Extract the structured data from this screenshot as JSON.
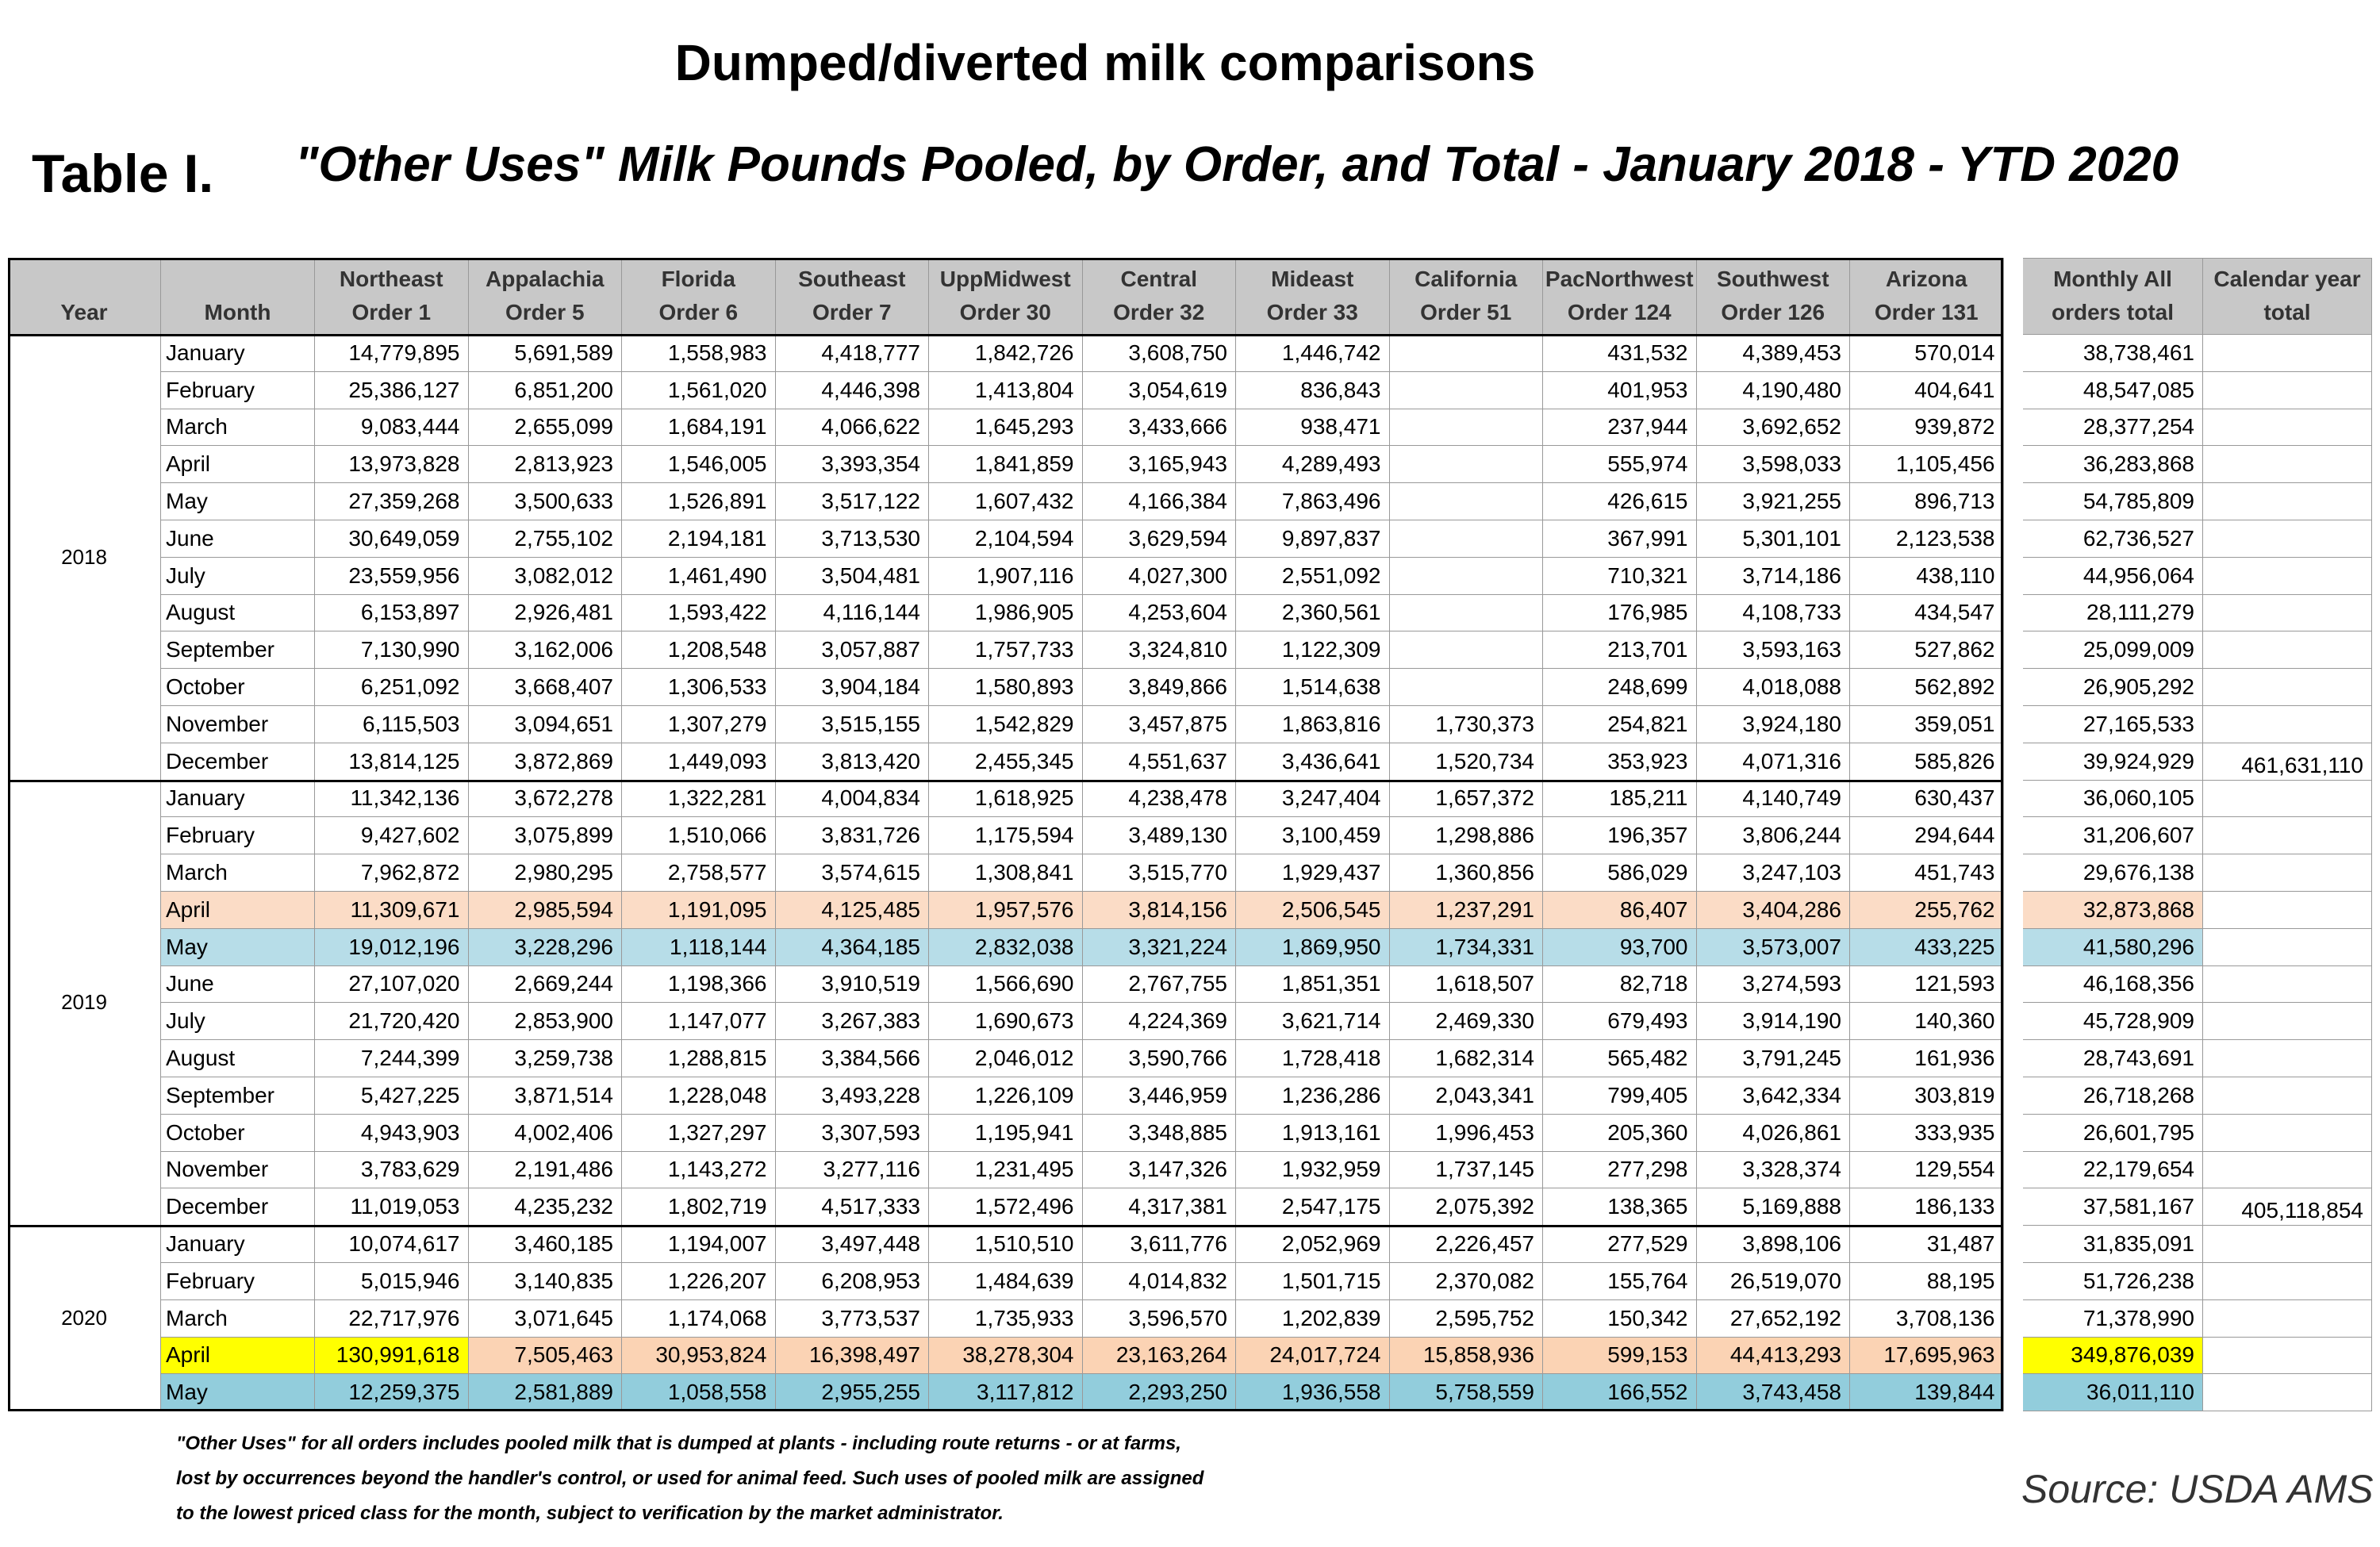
{
  "title": "Dumped/diverted milk comparisons",
  "table_label": "Table I.",
  "subtitle": "\"Other Uses\" Milk Pounds Pooled, by Order, and Total - January 2018 - YTD 2020",
  "table": {
    "header_fill": "#c8c8c8",
    "columns": [
      [
        "Year"
      ],
      [
        "Month"
      ],
      [
        "Northeast",
        "Order 1"
      ],
      [
        "Appalachia",
        "Order 5"
      ],
      [
        "Florida",
        "Order 6"
      ],
      [
        "Southeast",
        "Order 7"
      ],
      [
        "UppMidwest",
        "Order 30"
      ],
      [
        "Central",
        "Order 32"
      ],
      [
        "Mideast",
        "Order 33"
      ],
      [
        "California",
        "Order 51"
      ],
      [
        "PacNorthwest",
        "Order 124"
      ],
      [
        "Southwest",
        "Order 126"
      ],
      [
        "Arizona",
        "Order 131"
      ],
      [
        "Monthly All",
        "orders total"
      ],
      [
        "Calendar year",
        "total"
      ]
    ],
    "groups": [
      {
        "year": "2018",
        "rows": [
          {
            "month": "January",
            "values": [
              "14,779,895",
              "5,691,589",
              "1,558,983",
              "4,418,777",
              "1,842,726",
              "3,608,750",
              "1,446,742",
              null,
              "431,532",
              "4,389,453",
              "570,014"
            ],
            "monthly_total": "38,738,461"
          },
          {
            "month": "February",
            "values": [
              "25,386,127",
              "6,851,200",
              "1,561,020",
              "4,446,398",
              "1,413,804",
              "3,054,619",
              "836,843",
              null,
              "401,953",
              "4,190,480",
              "404,641"
            ],
            "monthly_total": "48,547,085"
          },
          {
            "month": "March",
            "values": [
              "9,083,444",
              "2,655,099",
              "1,684,191",
              "4,066,622",
              "1,645,293",
              "3,433,666",
              "938,471",
              null,
              "237,944",
              "3,692,652",
              "939,872"
            ],
            "monthly_total": "28,377,254"
          },
          {
            "month": "April",
            "values": [
              "13,973,828",
              "2,813,923",
              "1,546,005",
              "3,393,354",
              "1,841,859",
              "3,165,943",
              "4,289,493",
              null,
              "555,974",
              "3,598,033",
              "1,105,456"
            ],
            "monthly_total": "36,283,868"
          },
          {
            "month": "May",
            "values": [
              "27,359,268",
              "3,500,633",
              "1,526,891",
              "3,517,122",
              "1,607,432",
              "4,166,384",
              "7,863,496",
              null,
              "426,615",
              "3,921,255",
              "896,713"
            ],
            "monthly_total": "54,785,809"
          },
          {
            "month": "June",
            "values": [
              "30,649,059",
              "2,755,102",
              "2,194,181",
              "3,713,530",
              "2,104,594",
              "3,629,594",
              "9,897,837",
              null,
              "367,991",
              "5,301,101",
              "2,123,538"
            ],
            "monthly_total": "62,736,527"
          },
          {
            "month": "July",
            "values": [
              "23,559,956",
              "3,082,012",
              "1,461,490",
              "3,504,481",
              "1,907,116",
              "4,027,300",
              "2,551,092",
              null,
              "710,321",
              "3,714,186",
              "438,110"
            ],
            "monthly_total": "44,956,064"
          },
          {
            "month": "August",
            "values": [
              "6,153,897",
              "2,926,481",
              "1,593,422",
              "4,116,144",
              "1,986,905",
              "4,253,604",
              "2,360,561",
              null,
              "176,985",
              "4,108,733",
              "434,547"
            ],
            "monthly_total": "28,111,279"
          },
          {
            "month": "September",
            "values": [
              "7,130,990",
              "3,162,006",
              "1,208,548",
              "3,057,887",
              "1,757,733",
              "3,324,810",
              "1,122,309",
              null,
              "213,701",
              "3,593,163",
              "527,862"
            ],
            "monthly_total": "25,099,009"
          },
          {
            "month": "October",
            "values": [
              "6,251,092",
              "3,668,407",
              "1,306,533",
              "3,904,184",
              "1,580,893",
              "3,849,866",
              "1,514,638",
              null,
              "248,699",
              "4,018,088",
              "562,892"
            ],
            "monthly_total": "26,905,292"
          },
          {
            "month": "November",
            "values": [
              "6,115,503",
              "3,094,651",
              "1,307,279",
              "3,515,155",
              "1,542,829",
              "3,457,875",
              "1,863,816",
              "1,730,373",
              "254,821",
              "3,924,180",
              "359,051"
            ],
            "monthly_total": "27,165,533"
          },
          {
            "month": "December",
            "values": [
              "13,814,125",
              "3,872,869",
              "1,449,093",
              "3,813,420",
              "2,455,345",
              "4,551,637",
              "3,436,641",
              "1,520,734",
              "353,923",
              "4,071,316",
              "585,826"
            ],
            "monthly_total": "39,924,929",
            "calendar_total": "461,631,110"
          }
        ]
      },
      {
        "year": "2019",
        "rows": [
          {
            "month": "January",
            "values": [
              "11,342,136",
              "3,672,278",
              "1,322,281",
              "4,004,834",
              "1,618,925",
              "4,238,478",
              "3,247,404",
              "1,657,372",
              "185,211",
              "4,140,749",
              "630,437"
            ],
            "monthly_total": "36,060,105"
          },
          {
            "month": "February",
            "values": [
              "9,427,602",
              "3,075,899",
              "1,510,066",
              "3,831,726",
              "1,175,594",
              "3,489,130",
              "3,100,459",
              "1,298,886",
              "196,357",
              "3,806,244",
              "294,644"
            ],
            "monthly_total": "31,206,607"
          },
          {
            "month": "March",
            "values": [
              "7,962,872",
              "2,980,295",
              "2,758,577",
              "3,574,615",
              "1,308,841",
              "3,515,770",
              "1,929,437",
              "1,360,856",
              "586,029",
              "3,247,103",
              "451,743"
            ],
            "monthly_total": "29,676,138"
          },
          {
            "month": "April",
            "values": [
              "11,309,671",
              "2,985,594",
              "1,191,095",
              "4,125,485",
              "1,957,576",
              "3,814,156",
              "2,506,545",
              "1,237,291",
              "86,407",
              "3,404,286",
              "255,762"
            ],
            "monthly_total": "32,873,868",
            "fill": "#fbdcc6"
          },
          {
            "month": "May",
            "values": [
              "19,012,196",
              "3,228,296",
              "1,118,144",
              "4,364,185",
              "2,832,038",
              "3,321,224",
              "1,869,950",
              "1,734,331",
              "93,700",
              "3,573,007",
              "433,225"
            ],
            "monthly_total": "41,580,296",
            "fill": "#b7dde8"
          },
          {
            "month": "June",
            "values": [
              "27,107,020",
              "2,669,244",
              "1,198,366",
              "3,910,519",
              "1,566,690",
              "2,767,755",
              "1,851,351",
              "1,618,507",
              "82,718",
              "3,274,593",
              "121,593"
            ],
            "monthly_total": "46,168,356"
          },
          {
            "month": "July",
            "values": [
              "21,720,420",
              "2,853,900",
              "1,147,077",
              "3,267,383",
              "1,690,673",
              "4,224,369",
              "3,621,714",
              "2,469,330",
              "679,493",
              "3,914,190",
              "140,360"
            ],
            "monthly_total": "45,728,909"
          },
          {
            "month": "August",
            "values": [
              "7,244,399",
              "3,259,738",
              "1,288,815",
              "3,384,566",
              "2,046,012",
              "3,590,766",
              "1,728,418",
              "1,682,314",
              "565,482",
              "3,791,245",
              "161,936"
            ],
            "monthly_total": "28,743,691"
          },
          {
            "month": "September",
            "values": [
              "5,427,225",
              "3,871,514",
              "1,228,048",
              "3,493,228",
              "1,226,109",
              "3,446,959",
              "1,236,286",
              "2,043,341",
              "799,405",
              "3,642,334",
              "303,819"
            ],
            "monthly_total": "26,718,268"
          },
          {
            "month": "October",
            "values": [
              "4,943,903",
              "4,002,406",
              "1,327,297",
              "3,307,593",
              "1,195,941",
              "3,348,885",
              "1,913,161",
              "1,996,453",
              "205,360",
              "4,026,861",
              "333,935"
            ],
            "monthly_total": "26,601,795"
          },
          {
            "month": "November",
            "values": [
              "3,783,629",
              "2,191,486",
              "1,143,272",
              "3,277,116",
              "1,231,495",
              "3,147,326",
              "1,932,959",
              "1,737,145",
              "277,298",
              "3,328,374",
              "129,554"
            ],
            "monthly_total": "22,179,654"
          },
          {
            "month": "December",
            "values": [
              "11,019,053",
              "4,235,232",
              "1,802,719",
              "4,517,333",
              "1,572,496",
              "4,317,381",
              "2,547,175",
              "2,075,392",
              "138,365",
              "5,169,888",
              "186,133"
            ],
            "monthly_total": "37,581,167",
            "calendar_total": "405,118,854"
          }
        ]
      },
      {
        "year": "2020",
        "rows": [
          {
            "month": "January",
            "values": [
              "10,074,617",
              "3,460,185",
              "1,194,007",
              "3,497,448",
              "1,510,510",
              "3,611,776",
              "2,052,969",
              "2,226,457",
              "277,529",
              "3,898,106",
              "31,487"
            ],
            "monthly_total": "31,835,091"
          },
          {
            "month": "February",
            "values": [
              "5,015,946",
              "3,140,835",
              "1,226,207",
              "6,208,953",
              "1,484,639",
              "4,014,832",
              "1,501,715",
              "2,370,082",
              "155,764",
              "26,519,070",
              "88,195"
            ],
            "monthly_total": "51,726,238"
          },
          {
            "month": "March",
            "values": [
              "22,717,976",
              "3,071,645",
              "1,174,068",
              "3,773,537",
              "1,735,933",
              "3,596,570",
              "1,202,839",
              "2,595,752",
              "150,342",
              "27,652,192",
              "3,708,136"
            ],
            "monthly_total": "71,378,990"
          },
          {
            "month": "April",
            "values": [
              "130,991,618",
              "7,505,463",
              "30,953,824",
              "16,398,497",
              "38,278,304",
              "23,163,264",
              "24,017,724",
              "15,858,936",
              "599,153",
              "44,413,293",
              "17,695,963"
            ],
            "monthly_total": "349,876,039",
            "fill": "#fbd3b4",
            "accent_fill": "#ffff00",
            "accent_cells": [
              "month",
              "values.0",
              "monthly_total"
            ]
          },
          {
            "month": "May",
            "values": [
              "12,259,375",
              "2,581,889",
              "1,058,558",
              "2,955,255",
              "3,117,812",
              "2,293,250",
              "1,936,558",
              "5,758,559",
              "166,552",
              "3,743,458",
              "139,844"
            ],
            "monthly_total": "36,011,110",
            "fill": "#92cddc"
          }
        ]
      }
    ]
  },
  "footnote": [
    "\"Other Uses\" for all orders includes pooled milk that is dumped at plants - including route returns - or at farms,",
    "lost by occurrences beyond the handler's control, or used for animal feed.  Such uses of pooled milk are assigned",
    "to the lowest priced class for the month, subject to verification by the market administrator."
  ],
  "source": "Source: USDA AMS"
}
